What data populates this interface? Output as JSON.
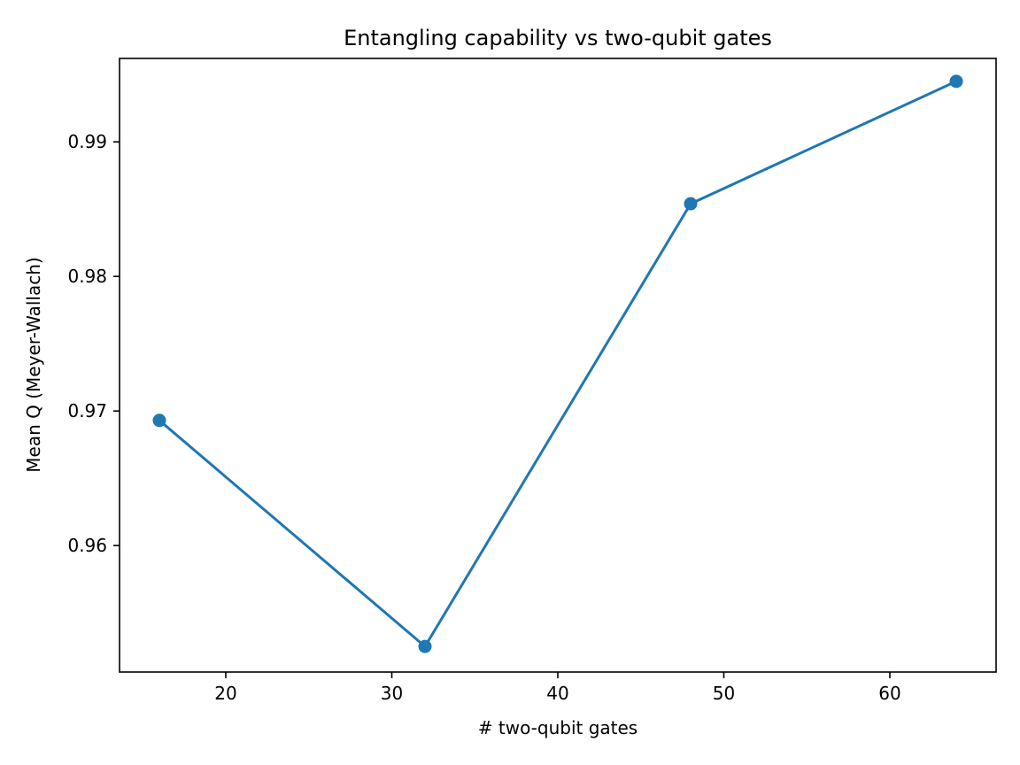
{
  "chart_data": {
    "type": "line",
    "title": "Entangling capability vs two-qubit gates",
    "xlabel": "# two-qubit gates",
    "ylabel": "Mean Q (Meyer-Wallach)",
    "xlim": [
      13.6,
      66.4
    ],
    "ylim": [
      0.9506,
      0.9962
    ],
    "xticks": [
      20,
      30,
      40,
      50,
      60
    ],
    "xtick_labels": [
      "20",
      "30",
      "40",
      "50",
      "60"
    ],
    "yticks": [
      0.96,
      0.97,
      0.98,
      0.99
    ],
    "ytick_labels": [
      "0.96",
      "0.97",
      "0.98",
      "0.99"
    ],
    "grid": false,
    "series": [
      {
        "x": [
          16,
          32,
          48,
          64
        ],
        "y": [
          0.9693,
          0.9525,
          0.9854,
          0.9945
        ],
        "color": "#1f77b4",
        "marker": "circle"
      }
    ]
  }
}
